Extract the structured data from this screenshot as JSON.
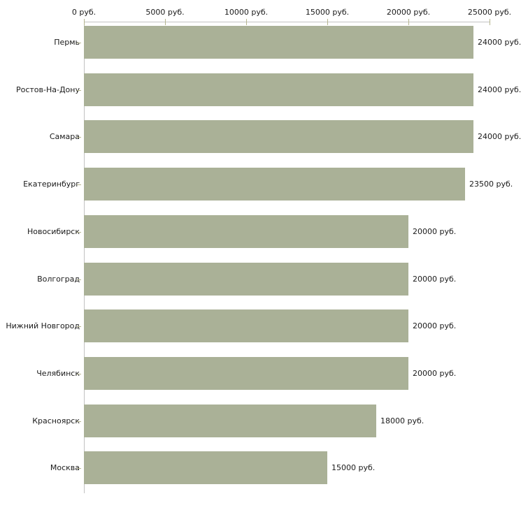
{
  "chart_data": {
    "type": "bar",
    "orientation": "horizontal",
    "title": "",
    "unit": "руб.",
    "categories": [
      "Пермь",
      "Ростов-На-Дону",
      "Самара",
      "Екатеринбург",
      "Новосибирск",
      "Волгоград",
      "Нижний Новгород",
      "Челябинск",
      "Красноярск",
      "Москва"
    ],
    "values": [
      24000,
      24000,
      24000,
      23500,
      20000,
      20000,
      20000,
      20000,
      18000,
      15000
    ],
    "value_labels": [
      "24000 руб.",
      "24000 руб.",
      "24000 руб.",
      "23500 руб.",
      "20000 руб.",
      "20000 руб.",
      "20000 руб.",
      "20000 руб.",
      "18000 руб.",
      "15000 руб."
    ],
    "x_ticks": [
      0,
      5000,
      10000,
      15000,
      20000,
      25000
    ],
    "x_tick_labels": [
      "0 руб.",
      "5000 руб.",
      "10000 руб.",
      "15000 руб.",
      "20000 руб.",
      "25000 руб."
    ],
    "xlim": [
      0,
      25000
    ],
    "axis_position": "top",
    "grid": false,
    "legend": false,
    "colors": {
      "bar": "#aab197",
      "axis_line": "#c2c2c2",
      "tick": "#b5b58f",
      "text": "#1a1a1a",
      "background": "#ffffff"
    }
  }
}
